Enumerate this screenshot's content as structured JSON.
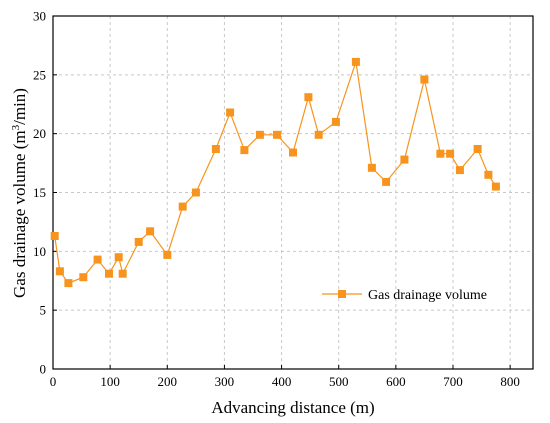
{
  "chart_data": {
    "type": "line",
    "title": "",
    "xlabel": "Advancing distance (m)",
    "ylabel_prefix": "Gas drainage volume (m",
    "ylabel_sup": "3",
    "ylabel_suffix": "/min)",
    "xlim": [
      0,
      840
    ],
    "ylim": [
      0,
      30
    ],
    "xticks": [
      0,
      100,
      200,
      300,
      400,
      500,
      600,
      700,
      800
    ],
    "yticks": [
      0,
      5,
      10,
      15,
      20,
      25,
      30
    ],
    "grid": true,
    "legend_position": "center-right",
    "series": [
      {
        "name": "Gas drainage volume",
        "color": "#f7941d",
        "marker": "square",
        "x": [
          3,
          12,
          27,
          53,
          78,
          98,
          115,
          122,
          150,
          170,
          200,
          227,
          250,
          285,
          310,
          335,
          362,
          392,
          420,
          447,
          465,
          495,
          530,
          558,
          583,
          615,
          650,
          678,
          695,
          712,
          743,
          762,
          775
        ],
        "y": [
          11.3,
          8.3,
          7.3,
          7.8,
          9.3,
          8.1,
          9.5,
          8.1,
          10.8,
          11.7,
          9.7,
          13.8,
          15.0,
          18.7,
          21.8,
          18.6,
          19.9,
          19.9,
          18.4,
          23.1,
          19.9,
          21.0,
          26.1,
          17.1,
          15.9,
          17.8,
          24.6,
          18.3,
          18.3,
          16.9,
          18.7,
          16.5,
          15.5
        ]
      }
    ]
  }
}
